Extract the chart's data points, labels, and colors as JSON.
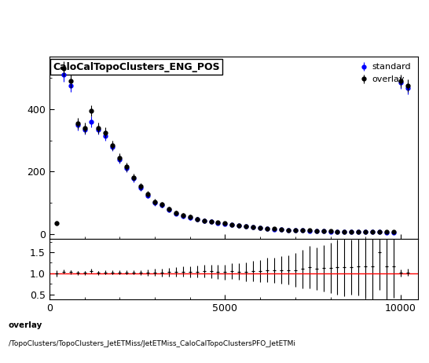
{
  "title": "CaloCalTopoClusters_ENG_POS",
  "footer_line1": "overlay",
  "footer_line2": "/TopoClusters/TopoClusters_JetETMiss/JetETMiss_CaloCalTopoClustersPFO_JetETMi",
  "legend_entries": [
    "overlay",
    "standard"
  ],
  "legend_colors": [
    "black",
    "blue"
  ],
  "xlim": [
    0,
    10500
  ],
  "ylim_main": [
    -15,
    570
  ],
  "ylim_ratio": [
    0.38,
    1.82
  ],
  "ratio_yticks": [
    0.5,
    1.0,
    1.5
  ],
  "main_yticks": [
    0,
    200,
    400
  ],
  "x_ticks": [
    0,
    5000,
    10000
  ],
  "overlay_x": [
    200,
    400,
    600,
    800,
    1000,
    1200,
    1400,
    1600,
    1800,
    2000,
    2200,
    2400,
    2600,
    2800,
    3000,
    3200,
    3400,
    3600,
    3800,
    4000,
    4200,
    4400,
    4600,
    4800,
    5000,
    5200,
    5400,
    5600,
    5800,
    6000,
    6200,
    6400,
    6600,
    6800,
    7000,
    7200,
    7400,
    7600,
    7800,
    8000,
    8200,
    8400,
    8600,
    8800,
    9000,
    9200,
    9400,
    9600,
    9800,
    10000,
    10200
  ],
  "overlay_y": [
    35,
    530,
    490,
    355,
    340,
    395,
    340,
    325,
    285,
    245,
    215,
    182,
    152,
    128,
    103,
    95,
    80,
    68,
    60,
    55,
    48,
    43,
    40,
    37,
    34,
    30,
    27,
    25,
    22,
    20,
    18,
    16,
    14,
    13,
    12,
    11,
    11,
    10,
    9,
    9,
    8,
    8,
    7,
    7,
    7,
    7,
    6,
    6,
    6,
    490,
    475
  ],
  "overlay_yerr": [
    8,
    25,
    22,
    18,
    17,
    18,
    17,
    16,
    15,
    14,
    13,
    12,
    11,
    10,
    9,
    9,
    8,
    8,
    7,
    7,
    6,
    6,
    6,
    5,
    5,
    5,
    5,
    5,
    4,
    4,
    4,
    4,
    3,
    3,
    3,
    3,
    3,
    3,
    3,
    3,
    3,
    2,
    2,
    2,
    2,
    2,
    2,
    2,
    2,
    20,
    20
  ],
  "standard_x": [
    400,
    600,
    800,
    1000,
    1200,
    1400,
    1600,
    1800,
    2000,
    2200,
    2400,
    2600,
    2800,
    3000,
    3200,
    3400,
    3600,
    3800,
    4000,
    4200,
    4400,
    4600,
    4800,
    5000,
    5200,
    5400,
    5600,
    5800,
    6000,
    6200,
    6400,
    6600,
    6800,
    7000,
    7200,
    7400,
    7600,
    7800,
    8000,
    8200,
    8400,
    8600,
    8800,
    9000,
    9200,
    9400,
    9600,
    9800,
    10000,
    10200
  ],
  "standard_y": [
    510,
    475,
    350,
    335,
    360,
    335,
    315,
    280,
    240,
    210,
    178,
    148,
    124,
    100,
    92,
    77,
    66,
    58,
    52,
    47,
    42,
    39,
    36,
    33,
    29,
    26,
    24,
    21,
    19,
    17,
    15,
    14,
    13,
    12,
    11,
    10,
    9,
    9,
    8,
    8,
    7,
    7,
    7,
    6,
    6,
    6,
    5,
    5,
    485,
    468
  ],
  "standard_yerr": [
    22,
    20,
    17,
    16,
    17,
    16,
    15,
    14,
    13,
    12,
    11,
    10,
    9,
    9,
    8,
    8,
    7,
    7,
    6,
    6,
    6,
    5,
    5,
    5,
    4,
    4,
    4,
    4,
    4,
    3,
    3,
    3,
    3,
    3,
    3,
    3,
    3,
    2,
    2,
    2,
    2,
    2,
    2,
    2,
    2,
    2,
    2,
    2,
    20,
    19
  ],
  "ratio_x": [
    200,
    400,
    600,
    800,
    1000,
    1200,
    1400,
    1600,
    1800,
    2000,
    2200,
    2400,
    2600,
    2800,
    3000,
    3200,
    3400,
    3600,
    3800,
    4000,
    4200,
    4400,
    4600,
    4800,
    5000,
    5200,
    5400,
    5600,
    5800,
    6000,
    6200,
    6400,
    6600,
    6800,
    7000,
    7200,
    7400,
    7600,
    7800,
    8000,
    8200,
    8400,
    8600,
    8800,
    9000,
    9200,
    9400,
    9600,
    9800,
    10000,
    10200
  ],
  "ratio_y": [
    1.0,
    1.04,
    1.03,
    1.01,
    1.01,
    1.05,
    1.01,
    1.02,
    1.02,
    1.02,
    1.02,
    1.02,
    1.02,
    1.02,
    1.02,
    1.02,
    1.03,
    1.03,
    1.04,
    1.04,
    1.04,
    1.05,
    1.05,
    1.03,
    1.03,
    1.05,
    1.04,
    1.04,
    1.06,
    1.06,
    1.08,
    1.07,
    1.08,
    1.08,
    1.08,
    1.1,
    1.15,
    1.11,
    1.12,
    1.13,
    1.14,
    1.15,
    1.14,
    1.17,
    1.17,
    1.17,
    1.5,
    1.17,
    1.17,
    1.01,
    1.02
  ],
  "ratio_yerr": [
    0.08,
    0.05,
    0.05,
    0.05,
    0.05,
    0.06,
    0.05,
    0.05,
    0.05,
    0.05,
    0.05,
    0.05,
    0.06,
    0.07,
    0.08,
    0.09,
    0.1,
    0.11,
    0.12,
    0.13,
    0.14,
    0.15,
    0.16,
    0.17,
    0.18,
    0.19,
    0.2,
    0.22,
    0.24,
    0.26,
    0.28,
    0.3,
    0.32,
    0.35,
    0.4,
    0.45,
    0.5,
    0.5,
    0.55,
    0.6,
    0.65,
    0.7,
    0.65,
    0.7,
    0.75,
    0.8,
    0.9,
    0.8,
    0.75,
    0.08,
    0.08
  ],
  "bg_color": "#ffffff",
  "marker_size": 3.5,
  "line_width": 0.8
}
